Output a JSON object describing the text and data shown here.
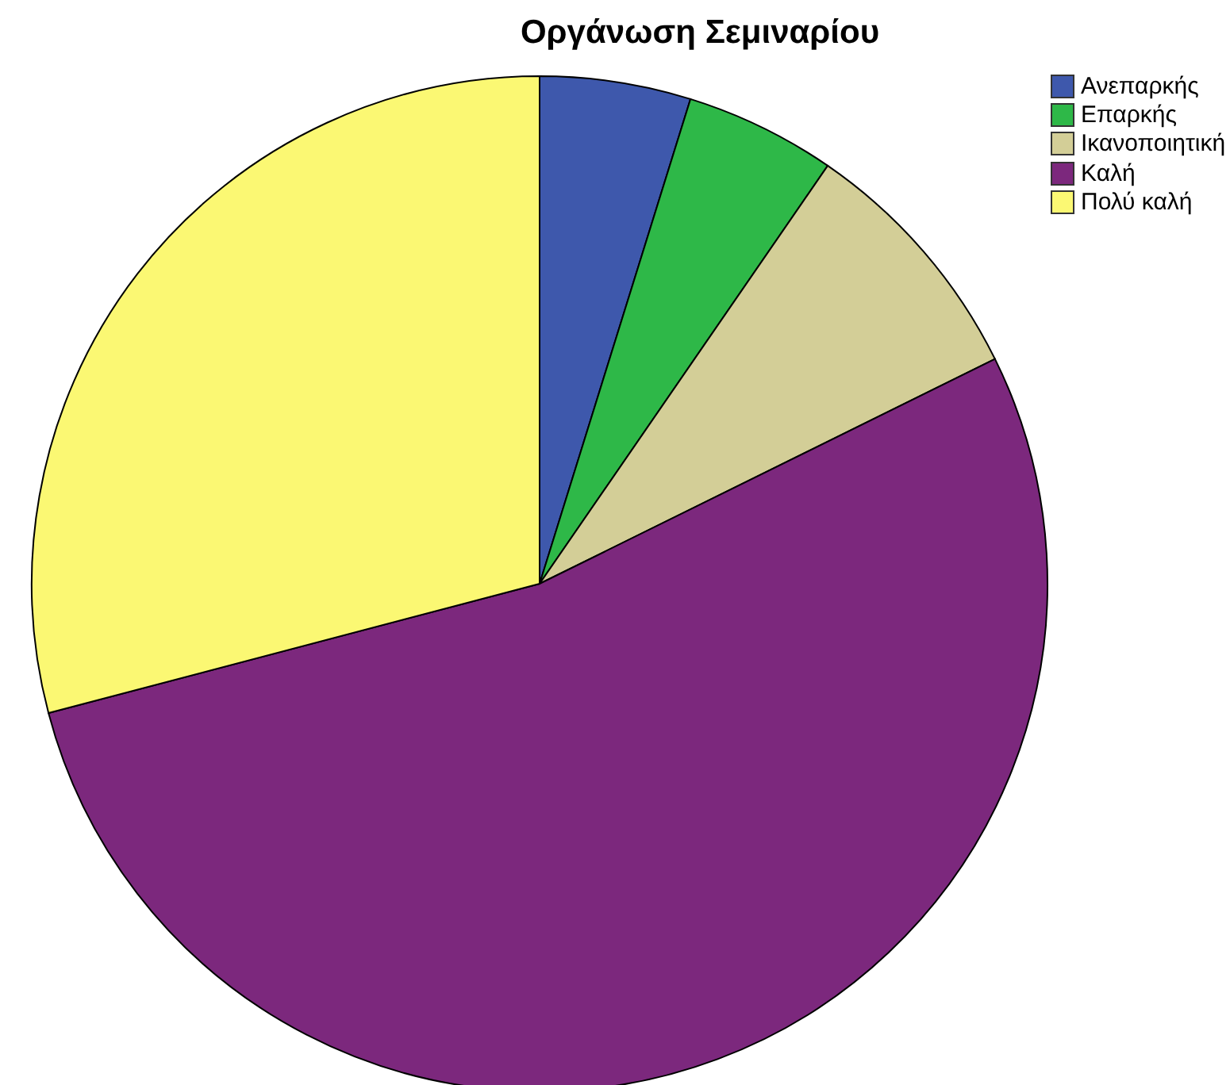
{
  "chart_data": {
    "type": "pie",
    "title": "Οργάνωση Σεμιναρίου",
    "categories": [
      "Ανεπαρκής",
      "Επαρκής",
      "Ικανοποιητική",
      "Καλή",
      "Πολύ καλή"
    ],
    "values": [
      4.8,
      4.8,
      8.1,
      53.2,
      29.1
    ],
    "colors": [
      "#3e58ac",
      "#2eb848",
      "#d3ce97",
      "#7c287d",
      "#fbf873"
    ],
    "legend": "top right"
  }
}
